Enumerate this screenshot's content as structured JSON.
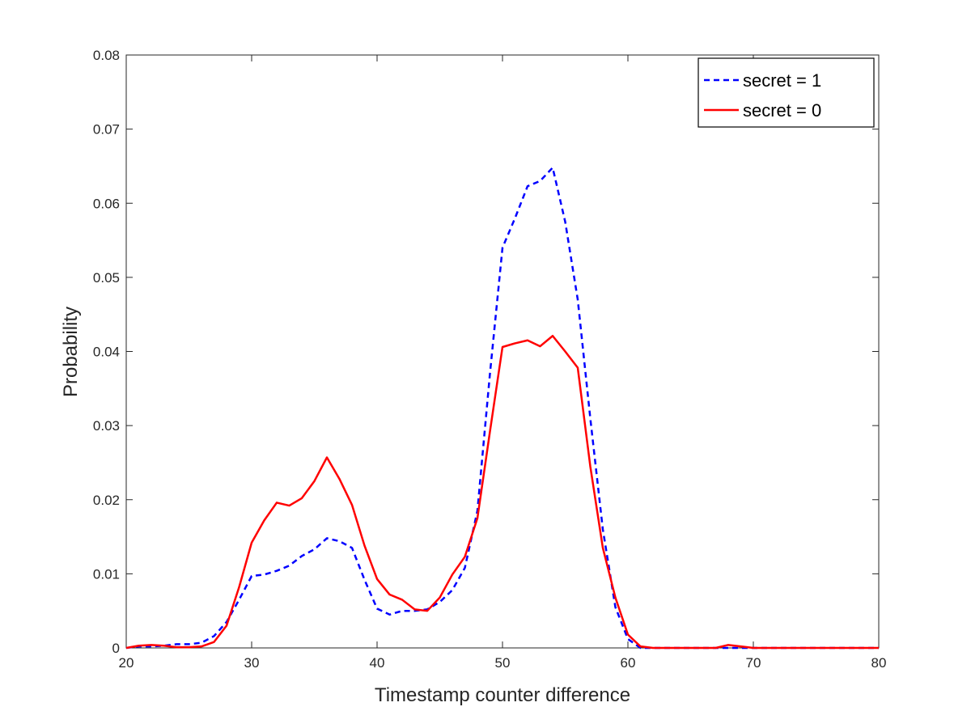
{
  "chart_data": {
    "type": "line",
    "title": "",
    "xlabel": "Timestamp counter difference",
    "ylabel": "Probability",
    "xlim": [
      20,
      80
    ],
    "ylim": [
      0,
      0.08
    ],
    "xticks": [
      "20",
      "30",
      "40",
      "50",
      "60",
      "70",
      "80"
    ],
    "yticks": [
      "0",
      "0.01",
      "0.02",
      "0.03",
      "0.04",
      "0.05",
      "0.06",
      "0.07",
      "0.08"
    ],
    "grid": false,
    "legend_position": "top-right",
    "series": [
      {
        "name": "secret = 1",
        "color": "#0000ff",
        "style": "dashed",
        "x": [
          20,
          21,
          22,
          23,
          24,
          25,
          26,
          27,
          28,
          29,
          30,
          31,
          32,
          33,
          34,
          35,
          36,
          37,
          38,
          39,
          40,
          41,
          42,
          43,
          44,
          45,
          46,
          47,
          48,
          49,
          50,
          51,
          52,
          53,
          54,
          55,
          56,
          57,
          58,
          59,
          60,
          61,
          62,
          63,
          64,
          65,
          66,
          67,
          68,
          69,
          70,
          71,
          72,
          73,
          74,
          75,
          76,
          77,
          78,
          79,
          80
        ],
        "values": [
          0,
          0.0002,
          0.0002,
          0.0003,
          0.0005,
          0.0005,
          0.0007,
          0.0016,
          0.0035,
          0.0065,
          0.0097,
          0.0099,
          0.0104,
          0.0111,
          0.0124,
          0.0133,
          0.0148,
          0.0144,
          0.0135,
          0.0092,
          0.0053,
          0.0045,
          0.005,
          0.005,
          0.0052,
          0.0062,
          0.0078,
          0.0108,
          0.0185,
          0.037,
          0.054,
          0.058,
          0.0623,
          0.063,
          0.0648,
          0.0575,
          0.047,
          0.031,
          0.016,
          0.0055,
          0.0012,
          0,
          0,
          0,
          0,
          0,
          0,
          0,
          0,
          0,
          0,
          0,
          0,
          0,
          0,
          0,
          0,
          0,
          0,
          0,
          0
        ]
      },
      {
        "name": "secret = 0",
        "color": "#ff0000",
        "style": "solid",
        "x": [
          20,
          21,
          22,
          23,
          24,
          25,
          26,
          27,
          28,
          29,
          30,
          31,
          32,
          33,
          34,
          35,
          36,
          37,
          38,
          39,
          40,
          41,
          42,
          43,
          44,
          45,
          46,
          47,
          48,
          49,
          50,
          51,
          52,
          53,
          54,
          55,
          56,
          57,
          58,
          59,
          60,
          61,
          62,
          63,
          64,
          65,
          66,
          67,
          68,
          69,
          70,
          71,
          72,
          73,
          74,
          75,
          76,
          77,
          78,
          79,
          80
        ],
        "values": [
          0,
          0.0003,
          0.0004,
          0.0003,
          0.0001,
          0.0001,
          0.0002,
          0.0008,
          0.003,
          0.0082,
          0.0142,
          0.0172,
          0.0196,
          0.0192,
          0.0202,
          0.0225,
          0.0257,
          0.0228,
          0.0193,
          0.0138,
          0.0093,
          0.0072,
          0.0065,
          0.0052,
          0.005,
          0.0068,
          0.0099,
          0.0123,
          0.0175,
          0.0292,
          0.0406,
          0.0411,
          0.0415,
          0.0407,
          0.0421,
          0.04,
          0.0378,
          0.0245,
          0.0135,
          0.0068,
          0.0018,
          0.0002,
          0,
          0,
          0,
          0,
          0,
          0,
          0.0004,
          0.0002,
          0,
          0,
          0,
          0,
          0,
          0,
          0,
          0,
          0,
          0,
          0
        ]
      }
    ]
  }
}
